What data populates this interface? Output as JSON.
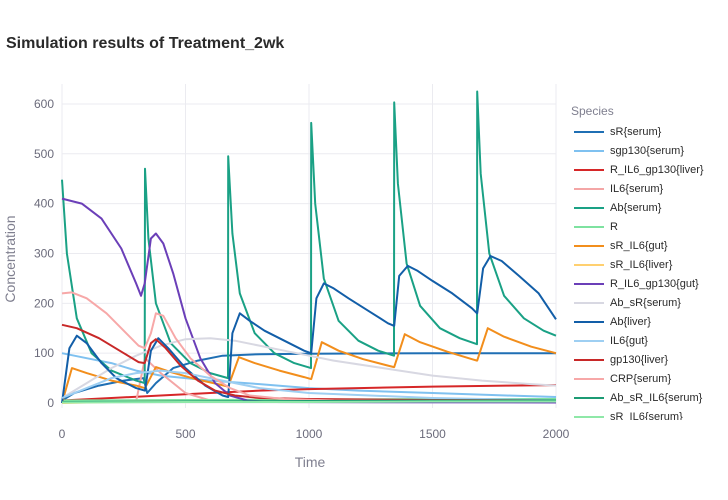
{
  "chart_data": {
    "type": "line",
    "title": "Simulation results of Treatment_2wk",
    "xlabel": "Time",
    "ylabel": "Concentration",
    "xlim": [
      0,
      2000
    ],
    "ylim": [
      -10,
      640
    ],
    "xticks": [
      0,
      500,
      1000,
      1500,
      2000
    ],
    "yticks": [
      0,
      100,
      200,
      300,
      400,
      500,
      600
    ],
    "grid": true,
    "legend": {
      "title": "Species",
      "placement": "right"
    },
    "series": [
      {
        "name": "sR{serum}",
        "color": "#1f6fb4",
        "points": [
          [
            0,
            5
          ],
          [
            50,
            20
          ],
          [
            150,
            35
          ],
          [
            250,
            45
          ],
          [
            330,
            50
          ],
          [
            345,
            20
          ],
          [
            380,
            40
          ],
          [
            450,
            70
          ],
          [
            550,
            85
          ],
          [
            650,
            95
          ],
          [
            800,
            98
          ],
          [
            1000,
            99
          ],
          [
            1500,
            100
          ],
          [
            2000,
            100
          ]
        ]
      },
      {
        "name": "sgp130{serum}",
        "color": "#7fc1f0",
        "points": [
          [
            0,
            100
          ],
          [
            100,
            90
          ],
          [
            200,
            80
          ],
          [
            300,
            65
          ],
          [
            400,
            55
          ],
          [
            600,
            45
          ],
          [
            800,
            38
          ],
          [
            1000,
            30
          ],
          [
            1200,
            25
          ],
          [
            1500,
            20
          ],
          [
            1800,
            15
          ],
          [
            2000,
            12
          ]
        ]
      },
      {
        "name": "R_IL6_gp130{liver}",
        "color": "#d62728",
        "points": [
          [
            0,
            5
          ],
          [
            200,
            10
          ],
          [
            400,
            15
          ],
          [
            600,
            20
          ],
          [
            800,
            25
          ],
          [
            1000,
            28
          ],
          [
            1200,
            30
          ],
          [
            1500,
            33
          ],
          [
            1800,
            35
          ],
          [
            2000,
            36
          ]
        ]
      },
      {
        "name": "IL6{serum}",
        "color": "#f4a6a6",
        "points": [
          [
            0,
            3
          ],
          [
            300,
            3
          ],
          [
            336,
            90
          ],
          [
            400,
            60
          ],
          [
            500,
            20
          ],
          [
            600,
            5
          ],
          [
            700,
            3
          ],
          [
            2000,
            3
          ]
        ]
      },
      {
        "name": "Ab{serum}",
        "color": "#1aa185",
        "points": [
          [
            0,
            448
          ],
          [
            20,
            300
          ],
          [
            60,
            170
          ],
          [
            120,
            100
          ],
          [
            200,
            65
          ],
          [
            300,
            45
          ],
          [
            335,
            40
          ],
          [
            336,
            470
          ],
          [
            350,
            330
          ],
          [
            380,
            200
          ],
          [
            440,
            120
          ],
          [
            520,
            80
          ],
          [
            600,
            60
          ],
          [
            672,
            50
          ],
          [
            673,
            495
          ],
          [
            690,
            340
          ],
          [
            720,
            220
          ],
          [
            780,
            140
          ],
          [
            860,
            100
          ],
          [
            940,
            80
          ],
          [
            1008,
            70
          ],
          [
            1009,
            562
          ],
          [
            1025,
            400
          ],
          [
            1060,
            250
          ],
          [
            1120,
            165
          ],
          [
            1200,
            125
          ],
          [
            1280,
            105
          ],
          [
            1344,
            95
          ],
          [
            1345,
            603
          ],
          [
            1360,
            440
          ],
          [
            1395,
            280
          ],
          [
            1450,
            195
          ],
          [
            1530,
            150
          ],
          [
            1610,
            130
          ],
          [
            1680,
            118
          ],
          [
            1681,
            625
          ],
          [
            1695,
            460
          ],
          [
            1730,
            300
          ],
          [
            1790,
            215
          ],
          [
            1870,
            170
          ],
          [
            1950,
            145
          ],
          [
            2000,
            135
          ]
        ]
      },
      {
        "name": "R",
        "color": "#7ee2a0",
        "points": [
          [
            0,
            5
          ],
          [
            500,
            6
          ],
          [
            1000,
            7
          ],
          [
            1500,
            8
          ],
          [
            2000,
            8
          ]
        ]
      },
      {
        "name": "sR_IL6{gut}",
        "color": "#f28e1c",
        "points": [
          [
            0,
            0
          ],
          [
            40,
            70
          ],
          [
            100,
            60
          ],
          [
            200,
            45
          ],
          [
            300,
            35
          ],
          [
            335,
            30
          ],
          [
            336,
            30
          ],
          [
            380,
            72
          ],
          [
            440,
            62
          ],
          [
            540,
            48
          ],
          [
            640,
            37
          ],
          [
            672,
            33
          ],
          [
            673,
            33
          ],
          [
            716,
            92
          ],
          [
            780,
            80
          ],
          [
            880,
            65
          ],
          [
            980,
            52
          ],
          [
            1008,
            48
          ],
          [
            1009,
            48
          ],
          [
            1052,
            122
          ],
          [
            1120,
            105
          ],
          [
            1220,
            88
          ],
          [
            1320,
            75
          ],
          [
            1344,
            72
          ],
          [
            1345,
            72
          ],
          [
            1388,
            138
          ],
          [
            1450,
            122
          ],
          [
            1560,
            103
          ],
          [
            1660,
            88
          ],
          [
            1680,
            85
          ],
          [
            1681,
            85
          ],
          [
            1724,
            150
          ],
          [
            1790,
            133
          ],
          [
            1900,
            113
          ],
          [
            2000,
            100
          ]
        ]
      },
      {
        "name": "sR_IL6{liver}",
        "color": "#ffd070",
        "points": [
          [
            0,
            0
          ],
          [
            200,
            2
          ],
          [
            400,
            3
          ],
          [
            600,
            3
          ],
          [
            2000,
            3
          ]
        ]
      },
      {
        "name": "R_IL6_gp130{gut}",
        "color": "#6b3fb8",
        "points": [
          [
            0,
            410
          ],
          [
            80,
            400
          ],
          [
            160,
            370
          ],
          [
            240,
            310
          ],
          [
            300,
            240
          ],
          [
            320,
            215
          ],
          [
            335,
            240
          ],
          [
            360,
            330
          ],
          [
            380,
            340
          ],
          [
            410,
            320
          ],
          [
            450,
            260
          ],
          [
            500,
            170
          ],
          [
            560,
            90
          ],
          [
            620,
            40
          ],
          [
            680,
            15
          ],
          [
            750,
            5
          ],
          [
            850,
            2
          ],
          [
            2000,
            1
          ]
        ]
      },
      {
        "name": "Ab_sR{serum}",
        "color": "#d8d8e2",
        "points": [
          [
            0,
            10
          ],
          [
            100,
            40
          ],
          [
            200,
            70
          ],
          [
            300,
            95
          ],
          [
            400,
            115
          ],
          [
            500,
            128
          ],
          [
            600,
            130
          ],
          [
            700,
            125
          ],
          [
            900,
            105
          ],
          [
            1100,
            85
          ],
          [
            1300,
            70
          ],
          [
            1500,
            55
          ],
          [
            1700,
            45
          ],
          [
            1900,
            38
          ],
          [
            2000,
            35
          ]
        ]
      },
      {
        "name": "Ab{liver}",
        "color": "#125ea8",
        "points": [
          [
            0,
            0
          ],
          [
            30,
            110
          ],
          [
            60,
            135
          ],
          [
            100,
            120
          ],
          [
            160,
            80
          ],
          [
            220,
            50
          ],
          [
            300,
            30
          ],
          [
            335,
            25
          ],
          [
            336,
            25
          ],
          [
            360,
            105
          ],
          [
            390,
            130
          ],
          [
            430,
            110
          ],
          [
            500,
            70
          ],
          [
            580,
            35
          ],
          [
            650,
            15
          ],
          [
            672,
            12
          ],
          [
            673,
            12
          ],
          [
            690,
            140
          ],
          [
            720,
            180
          ],
          [
            760,
            165
          ],
          [
            820,
            145
          ],
          [
            900,
            125
          ],
          [
            980,
            105
          ],
          [
            1008,
            100
          ],
          [
            1009,
            100
          ],
          [
            1030,
            210
          ],
          [
            1060,
            240
          ],
          [
            1100,
            230
          ],
          [
            1160,
            210
          ],
          [
            1240,
            185
          ],
          [
            1320,
            160
          ],
          [
            1344,
            155
          ],
          [
            1345,
            155
          ],
          [
            1365,
            255
          ],
          [
            1400,
            275
          ],
          [
            1440,
            265
          ],
          [
            1500,
            245
          ],
          [
            1580,
            220
          ],
          [
            1660,
            190
          ],
          [
            1680,
            180
          ],
          [
            1681,
            180
          ],
          [
            1705,
            270
          ],
          [
            1735,
            295
          ],
          [
            1780,
            285
          ],
          [
            1850,
            255
          ],
          [
            1930,
            220
          ],
          [
            2000,
            168
          ]
        ]
      },
      {
        "name": "IL6{gut}",
        "color": "#9ecff2",
        "points": [
          [
            0,
            10
          ],
          [
            100,
            30
          ],
          [
            200,
            50
          ],
          [
            300,
            60
          ],
          [
            400,
            65
          ],
          [
            500,
            60
          ],
          [
            600,
            50
          ],
          [
            700,
            40
          ],
          [
            800,
            30
          ],
          [
            1000,
            20
          ],
          [
            1500,
            10
          ],
          [
            2000,
            5
          ]
        ]
      },
      {
        "name": "gp130{liver}",
        "color": "#c82828",
        "points": [
          [
            0,
            157
          ],
          [
            60,
            150
          ],
          [
            150,
            130
          ],
          [
            250,
            100
          ],
          [
            310,
            82
          ],
          [
            335,
            80
          ],
          [
            360,
            120
          ],
          [
            380,
            128
          ],
          [
            420,
            110
          ],
          [
            480,
            75
          ],
          [
            550,
            45
          ],
          [
            620,
            25
          ],
          [
            700,
            15
          ],
          [
            800,
            10
          ],
          [
            1000,
            8
          ],
          [
            1500,
            6
          ],
          [
            2000,
            5
          ]
        ]
      },
      {
        "name": "CRP{serum}",
        "color": "#f7a8a8",
        "points": [
          [
            0,
            220
          ],
          [
            40,
            222
          ],
          [
            100,
            210
          ],
          [
            180,
            180
          ],
          [
            260,
            140
          ],
          [
            310,
            115
          ],
          [
            335,
            110
          ],
          [
            360,
            140
          ],
          [
            380,
            180
          ],
          [
            410,
            175
          ],
          [
            460,
            130
          ],
          [
            520,
            90
          ],
          [
            600,
            55
          ],
          [
            680,
            30
          ],
          [
            760,
            15
          ],
          [
            900,
            8
          ],
          [
            1100,
            5
          ],
          [
            2000,
            3
          ]
        ]
      },
      {
        "name": "Ab_sR_IL6{serum}",
        "color": "#1c9b74",
        "points": [
          [
            0,
            2
          ],
          [
            500,
            3
          ],
          [
            1000,
            4
          ],
          [
            1500,
            5
          ],
          [
            2000,
            5
          ]
        ]
      },
      {
        "name": "sR_IL6{serum}",
        "color": "#8fe8a8",
        "points": [
          [
            0,
            1
          ],
          [
            500,
            2
          ],
          [
            1000,
            2
          ],
          [
            1500,
            3
          ],
          [
            2000,
            3
          ]
        ]
      }
    ]
  }
}
